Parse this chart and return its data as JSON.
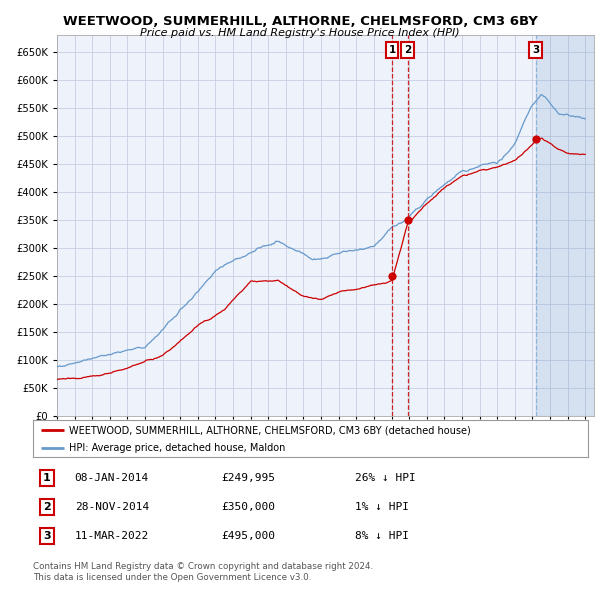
{
  "title": "WEETWOOD, SUMMERHILL, ALTHORNE, CHELMSFORD, CM3 6BY",
  "subtitle": "Price paid vs. HM Land Registry's House Price Index (HPI)",
  "red_label": "WEETWOOD, SUMMERHILL, ALTHORNE, CHELMSFORD, CM3 6BY (detached house)",
  "blue_label": "HPI: Average price, detached house, Maldon",
  "footer1": "Contains HM Land Registry data © Crown copyright and database right 2024.",
  "footer2": "This data is licensed under the Open Government Licence v3.0.",
  "transactions": [
    {
      "num": 1,
      "date": "08-JAN-2014",
      "price": "£249,995",
      "hpi": "26% ↓ HPI",
      "year": 2014.03
    },
    {
      "num": 2,
      "date": "28-NOV-2014",
      "price": "£350,000",
      "hpi": "1% ↓ HPI",
      "year": 2014.92
    },
    {
      "num": 3,
      "date": "11-MAR-2022",
      "price": "£495,000",
      "hpi": "8% ↓ HPI",
      "year": 2022.19
    }
  ],
  "sale_prices": [
    249995,
    350000,
    495000
  ],
  "sale_years": [
    2014.03,
    2014.92,
    2022.19
  ],
  "vline1_x": 2014.03,
  "vline2_x": 2014.92,
  "vline3_x": 2022.19,
  "ylim": [
    0,
    680000
  ],
  "xlim_start": 1995,
  "xlim_end": 2025.5,
  "background_color": "#ffffff",
  "plot_bg": "#eef2fa",
  "grid_color": "#c0c8dc",
  "red_color": "#cc0000",
  "blue_color": "#6699cc",
  "highlight_bg": "#ddeeff"
}
